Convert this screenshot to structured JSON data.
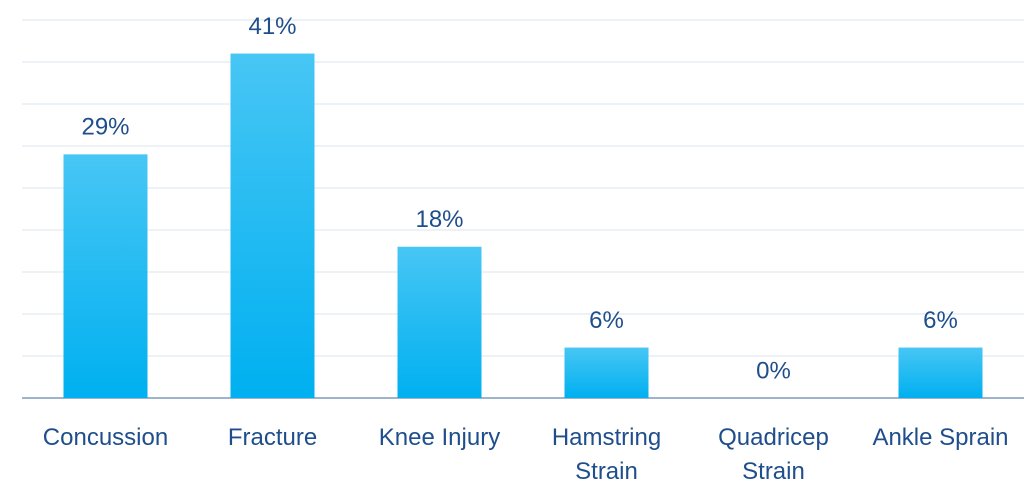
{
  "chart_data": {
    "type": "bar",
    "categories": [
      "Concussion",
      "Fracture",
      "Knee Injury",
      "Hamstring Strain",
      "Quadricep Strain",
      "Ankle Sprain"
    ],
    "values": [
      29,
      41,
      18,
      6,
      0,
      6
    ],
    "value_labels": [
      "29%",
      "41%",
      "18%",
      "6%",
      "0%",
      "6%"
    ],
    "color": "#00b0f0",
    "ylim": [
      0,
      45
    ],
    "yticks": [
      0,
      5,
      10,
      15,
      20,
      25,
      30,
      35,
      40,
      45
    ],
    "grid": true
  }
}
